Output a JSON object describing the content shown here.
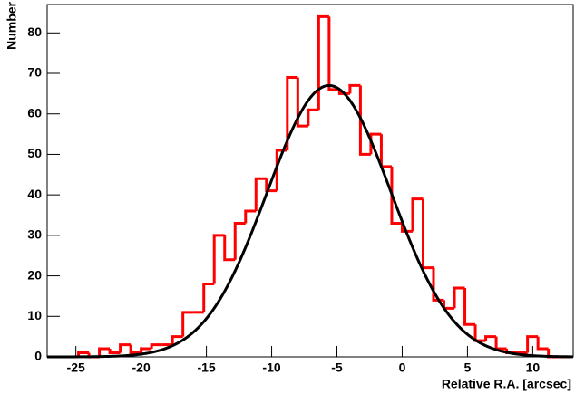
{
  "chart_data": {
    "type": "histogram",
    "x_label": "Relative R.A. [arcsec]",
    "y_label": "Number",
    "bins": [
      -27.2,
      -26.4,
      -25.6,
      -24.8,
      -24.0,
      -23.2,
      -22.4,
      -21.6,
      -20.8,
      -20.0,
      -19.2,
      -18.4,
      -17.6,
      -16.8,
      -16.0,
      -15.2,
      -14.4,
      -13.6,
      -12.8,
      -12.0,
      -11.2,
      -10.4,
      -9.6,
      -8.8,
      -8.0,
      -7.2,
      -6.4,
      -5.6,
      -4.8,
      -4.0,
      -3.2,
      -2.4,
      -1.6,
      -0.8,
      0,
      0.8,
      1.6,
      2.4,
      3.2,
      4.0,
      4.8,
      5.6,
      6.4,
      7.2,
      8.0,
      8.8,
      9.6,
      10.4,
      11.2,
      12.0,
      12.8
    ],
    "values": [
      0,
      0,
      0,
      1,
      0,
      2,
      1,
      3,
      1,
      2,
      3,
      3,
      5,
      11,
      11,
      18,
      30,
      24,
      33,
      36,
      44,
      41,
      51,
      69,
      57,
      61,
      84,
      66,
      65,
      67,
      50,
      55,
      47,
      33,
      31,
      39,
      22,
      14,
      12,
      17,
      8,
      4,
      5,
      2,
      1,
      1,
      5,
      2,
      0,
      0
    ],
    "color": "#ff0000",
    "fit": {
      "amplitude": 67,
      "mean": -5.6,
      "sigma": 4.75,
      "color": "#000000"
    },
    "xlim": [
      -27.2,
      13.1
    ],
    "xticks": [
      -25,
      -20,
      -15,
      -10,
      -5,
      0,
      5,
      10
    ],
    "ylim": [
      0,
      87
    ],
    "yticks": [
      0,
      10,
      20,
      30,
      40,
      50,
      60,
      70,
      80
    ]
  }
}
